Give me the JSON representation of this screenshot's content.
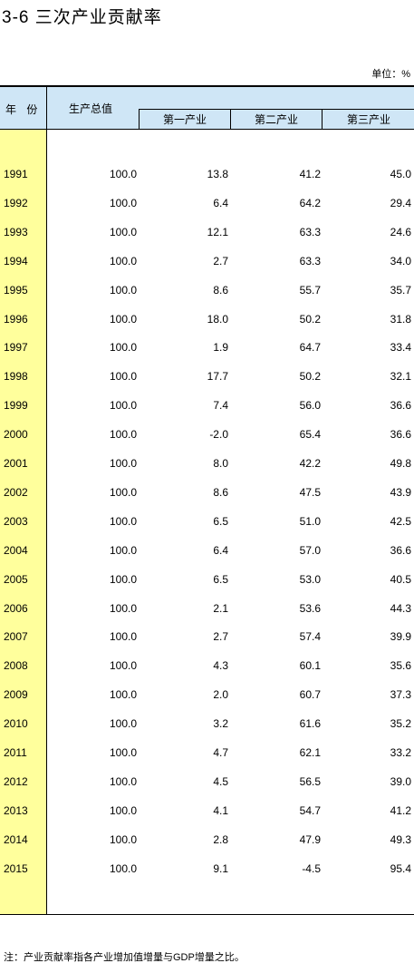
{
  "title": "3-6  三次产业贡献率",
  "unit": "单位：%",
  "headers": {
    "year": "年  份",
    "gross": "生产总值",
    "primary": "第一产业",
    "secondary": "第二产业",
    "tertiary": "第三产业"
  },
  "rows": [
    {
      "year": "1991",
      "total": "100.0",
      "primary": "13.8",
      "secondary": "41.2",
      "tertiary": "45.0"
    },
    {
      "year": "1992",
      "total": "100.0",
      "primary": "6.4",
      "secondary": "64.2",
      "tertiary": "29.4"
    },
    {
      "year": "1993",
      "total": "100.0",
      "primary": "12.1",
      "secondary": "63.3",
      "tertiary": "24.6"
    },
    {
      "year": "1994",
      "total": "100.0",
      "primary": "2.7",
      "secondary": "63.3",
      "tertiary": "34.0"
    },
    {
      "year": "1995",
      "total": "100.0",
      "primary": "8.6",
      "secondary": "55.7",
      "tertiary": "35.7"
    },
    {
      "year": "1996",
      "total": "100.0",
      "primary": "18.0",
      "secondary": "50.2",
      "tertiary": "31.8"
    },
    {
      "year": "1997",
      "total": "100.0",
      "primary": "1.9",
      "secondary": "64.7",
      "tertiary": "33.4"
    },
    {
      "year": "1998",
      "total": "100.0",
      "primary": "17.7",
      "secondary": "50.2",
      "tertiary": "32.1"
    },
    {
      "year": "1999",
      "total": "100.0",
      "primary": "7.4",
      "secondary": "56.0",
      "tertiary": "36.6"
    },
    {
      "year": "2000",
      "total": "100.0",
      "primary": "-2.0",
      "secondary": "65.4",
      "tertiary": "36.6"
    },
    {
      "year": "2001",
      "total": "100.0",
      "primary": "8.0",
      "secondary": "42.2",
      "tertiary": "49.8"
    },
    {
      "year": "2002",
      "total": "100.0",
      "primary": "8.6",
      "secondary": "47.5",
      "tertiary": "43.9"
    },
    {
      "year": "2003",
      "total": "100.0",
      "primary": "6.5",
      "secondary": "51.0",
      "tertiary": "42.5"
    },
    {
      "year": "2004",
      "total": "100.0",
      "primary": "6.4",
      "secondary": "57.0",
      "tertiary": "36.6"
    },
    {
      "year": "2005",
      "total": "100.0",
      "primary": "6.5",
      "secondary": "53.0",
      "tertiary": "40.5"
    },
    {
      "year": "2006",
      "total": "100.0",
      "primary": "2.1",
      "secondary": "53.6",
      "tertiary": "44.3"
    },
    {
      "year": "2007",
      "total": "100.0",
      "primary": "2.7",
      "secondary": "57.4",
      "tertiary": "39.9"
    },
    {
      "year": "2008",
      "total": "100.0",
      "primary": "4.3",
      "secondary": "60.1",
      "tertiary": "35.6"
    },
    {
      "year": "2009",
      "total": "100.0",
      "primary": "2.0",
      "secondary": "60.7",
      "tertiary": "37.3"
    },
    {
      "year": "2010",
      "total": "100.0",
      "primary": "3.2",
      "secondary": "61.6",
      "tertiary": "35.2"
    },
    {
      "year": "2011",
      "total": "100.0",
      "primary": "4.7",
      "secondary": "62.1",
      "tertiary": "33.2"
    },
    {
      "year": "2012",
      "total": "100.0",
      "primary": "4.5",
      "secondary": "56.5",
      "tertiary": "39.0"
    },
    {
      "year": "2013",
      "total": "100.0",
      "primary": "4.1",
      "secondary": "54.7",
      "tertiary": "41.2"
    },
    {
      "year": "2014",
      "total": "100.0",
      "primary": "2.8",
      "secondary": "47.9",
      "tertiary": "49.3"
    },
    {
      "year": "2015",
      "total": "100.0",
      "primary": "9.1",
      "secondary": "-4.5",
      "tertiary": "95.4"
    }
  ],
  "note": "注：产业贡献率指各产业增加值增量与GDP增量之比。"
}
